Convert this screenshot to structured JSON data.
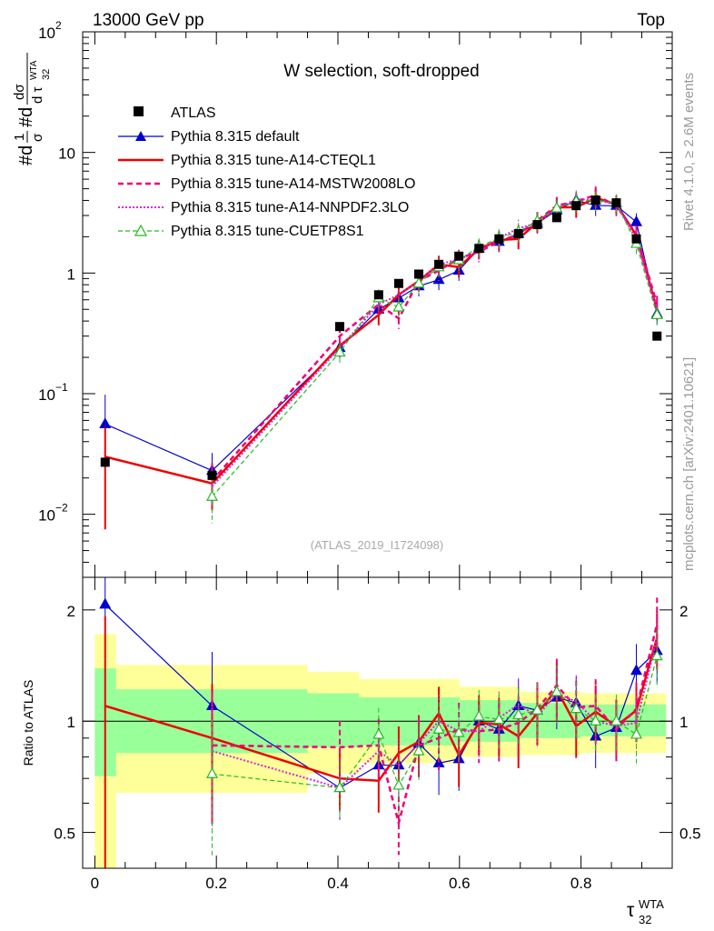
{
  "header": {
    "left": "13000 GeV pp",
    "right": "Top"
  },
  "side_labels": {
    "rivet": "Rivet 4.1.0, ≥ 2.6M events",
    "mcplots": "mcplots.cern.ch [arXiv:2401.10621]"
  },
  "colors": {
    "atlas": "#000000",
    "pythia_default": "#0000cc",
    "cteql1": "#ee0000",
    "mstw": "#ee0077",
    "nnpdf": "#dd22dd",
    "cuetp": "#22bb22",
    "band_inner": "#99ff99",
    "band_outer": "#ffff99"
  },
  "chart_data": [
    {
      "type": "line",
      "scale": "log",
      "title": "W selection, soft-dropped",
      "watermark": "(ATLAS_2019_I1724098)",
      "ylabel": "#d 1/σ #d dσ/d τ 32 WTA",
      "ylabel_parts": {
        "hash1": "#d",
        "one": "1",
        "sigma": "σ",
        "hash2": "#d",
        "dsigma": "dσ",
        "dtau": "d τ",
        "sub": "32",
        "sup": "WTA"
      },
      "xlim": [
        -0.02,
        0.95
      ],
      "ylim": [
        0.003,
        100
      ],
      "y_ticks": [
        {
          "value": 0.01,
          "base": "10",
          "exp": "−2"
        },
        {
          "value": 0.1,
          "base": "10",
          "exp": "−1"
        },
        {
          "value": 1,
          "label": "1"
        },
        {
          "value": 10,
          "label": "10"
        },
        {
          "value": 100,
          "base": "10",
          "exp": "2"
        }
      ],
      "legend": [
        "ATLAS",
        "Pythia 8.315 default",
        "Pythia 8.315 tune-A14-CTEQL1",
        "Pythia 8.315 tune-A14-MSTW2008LO",
        "Pythia 8.315 tune-A14-NNPDF2.3LO",
        "Pythia 8.315 tune-CUETP8S1"
      ],
      "x": [
        0.017,
        0.193,
        0.403,
        0.467,
        0.5,
        0.533,
        0.566,
        0.599,
        0.632,
        0.665,
        0.697,
        0.728,
        0.76,
        0.792,
        0.824,
        0.858,
        0.891,
        0.925
      ],
      "atlas": [
        0.027,
        0.021,
        0.36,
        0.66,
        0.82,
        0.98,
        1.18,
        1.38,
        1.6,
        1.92,
        2.12,
        2.52,
        2.88,
        3.62,
        4.02,
        3.82,
        1.92,
        0.3
      ],
      "series": [
        {
          "name": "Pythia 8.315 default",
          "key": "pythia_default",
          "x": [
            0.017,
            0.193,
            0.403,
            0.467,
            0.5,
            0.533,
            0.566,
            0.599,
            0.632,
            0.665,
            0.697,
            0.728,
            0.76,
            0.792,
            0.824,
            0.858,
            0.891,
            0.925
          ],
          "values": [
            0.056,
            0.023,
            0.24,
            0.5,
            0.62,
            0.78,
            0.88,
            1.05,
            1.6,
            1.82,
            2.12,
            2.58,
            3.32,
            4.0,
            3.62,
            3.62,
            2.65,
            0.46
          ]
        },
        {
          "name": "Pythia 8.315 tune-A14-CTEQL1",
          "key": "cteql1",
          "x": [
            0.017,
            0.193,
            0.403,
            0.467,
            0.5,
            0.533,
            0.566,
            0.599,
            0.632,
            0.665,
            0.697,
            0.728,
            0.76,
            0.792,
            0.824,
            0.858,
            0.891,
            0.925
          ],
          "values": [
            0.03,
            0.018,
            0.25,
            0.45,
            0.66,
            0.86,
            1.18,
            1.12,
            1.58,
            1.88,
            1.92,
            2.62,
            3.52,
            3.5,
            4.2,
            3.72,
            2.05,
            0.5
          ]
        },
        {
          "name": "Pythia 8.315 tune-A14-MSTW2008LO",
          "key": "mstw",
          "x": [
            0.193,
            0.403,
            0.467,
            0.5,
            0.533,
            0.566,
            0.599,
            0.632,
            0.665,
            0.697,
            0.728,
            0.76,
            0.792,
            0.824,
            0.858,
            0.891,
            0.925
          ],
          "values": [
            0.019,
            0.3,
            0.55,
            0.42,
            0.86,
            1.05,
            1.32,
            1.5,
            1.82,
            2.1,
            2.72,
            3.62,
            3.92,
            4.42,
            3.62,
            2.1,
            0.55
          ]
        },
        {
          "name": "Pythia 8.315 tune-A14-NNPDF2.3LO",
          "key": "nnpdf",
          "x": [
            0.193,
            0.403,
            0.467,
            0.5,
            0.533,
            0.566,
            0.599,
            0.632,
            0.665,
            0.697,
            0.728,
            0.76,
            0.792,
            0.824,
            0.858,
            0.891,
            0.925
          ],
          "values": [
            0.017,
            0.24,
            0.55,
            0.66,
            0.85,
            1.18,
            1.3,
            1.5,
            1.95,
            2.35,
            2.6,
            3.42,
            4.1,
            4.02,
            3.72,
            1.9,
            0.5
          ]
        },
        {
          "name": "Pythia 8.315 tune-CUETP8S1",
          "key": "cuetp",
          "x": [
            0.193,
            0.403,
            0.467,
            0.5,
            0.533,
            0.566,
            0.599,
            0.632,
            0.665,
            0.697,
            0.728,
            0.76,
            0.792,
            0.824,
            0.858,
            0.891,
            0.925
          ],
          "values": [
            0.014,
            0.22,
            0.62,
            0.52,
            0.82,
            1.12,
            1.28,
            1.65,
            1.95,
            2.2,
            2.7,
            3.45,
            3.92,
            4.02,
            3.82,
            1.75,
            0.45
          ]
        }
      ]
    },
    {
      "type": "line",
      "scale": "log",
      "ylabel": "Ratio to ATLAS",
      "xlabel": "τ 32 WTA",
      "xlabel_parts": {
        "tau": "τ",
        "sub": "32",
        "sup": "WTA"
      },
      "xlim": [
        -0.02,
        0.95
      ],
      "ylim": [
        0.4,
        2.45
      ],
      "x_ticks": [
        "0",
        "0.2",
        "0.4",
        "0.6",
        "0.8"
      ],
      "x_tick_values": [
        0,
        0.2,
        0.4,
        0.6,
        0.8
      ],
      "y_ticks": [
        "0.5",
        "1",
        "2"
      ],
      "y_tick_values": [
        0.5,
        1,
        2
      ],
      "bands": {
        "edges": [
          0.0,
          0.035,
          0.35,
          0.435,
          0.6,
          0.7,
          0.8,
          0.94
        ],
        "inner_lo": [
          0.71,
          0.82,
          0.85,
          0.86,
          0.88,
          0.9,
          0.91
        ],
        "inner_hi": [
          1.39,
          1.22,
          1.19,
          1.16,
          1.14,
          1.12,
          1.11
        ],
        "outer_lo": [
          0.38,
          0.64,
          0.72,
          0.77,
          0.8,
          0.81,
          0.82
        ],
        "outer_hi": [
          1.72,
          1.42,
          1.36,
          1.3,
          1.24,
          1.2,
          1.19
        ]
      },
      "series": [
        {
          "name": "Pythia 8.315 default",
          "key": "pythia_default",
          "x": [
            0.017,
            0.193,
            0.403,
            0.467,
            0.5,
            0.533,
            0.566,
            0.599,
            0.632,
            0.665,
            0.697,
            0.728,
            0.76,
            0.792,
            0.824,
            0.858,
            0.891,
            0.925
          ],
          "values": [
            2.07,
            1.1,
            0.66,
            0.76,
            0.76,
            0.87,
            0.77,
            0.79,
            1.0,
            0.95,
            1.1,
            1.07,
            1.16,
            1.12,
            0.91,
            0.96,
            1.37,
            1.55
          ]
        },
        {
          "name": "Pythia 8.315 tune-A14-CTEQL1",
          "key": "cteql1",
          "x": [
            0.017,
            0.193,
            0.403,
            0.467,
            0.5,
            0.533,
            0.566,
            0.599,
            0.632,
            0.665,
            0.697,
            0.728,
            0.76,
            0.792,
            0.824,
            0.858,
            0.891,
            0.925
          ],
          "values": [
            1.1,
            0.9,
            0.7,
            0.69,
            0.82,
            0.88,
            1.05,
            0.81,
            0.99,
            0.98,
            0.91,
            1.05,
            1.22,
            0.97,
            1.06,
            0.97,
            1.07,
            1.68
          ]
        },
        {
          "name": "Pythia 8.315 tune-A14-MSTW2008LO",
          "key": "mstw",
          "x": [
            0.193,
            0.403,
            0.467,
            0.5,
            0.533,
            0.566,
            0.599,
            0.632,
            0.665,
            0.697,
            0.728,
            0.76,
            0.792,
            0.824,
            0.858,
            0.891,
            0.925
          ],
          "values": [
            0.86,
            0.85,
            0.86,
            0.53,
            0.86,
            0.9,
            0.95,
            0.94,
            0.95,
            0.99,
            1.08,
            1.25,
            1.09,
            1.1,
            0.95,
            1.08,
            1.83
          ]
        },
        {
          "name": "Pythia 8.315 tune-A14-NNPDF2.3LO",
          "key": "nnpdf",
          "x": [
            0.193,
            0.403,
            0.467,
            0.5,
            0.533,
            0.566,
            0.599,
            0.632,
            0.665,
            0.697,
            0.728,
            0.76,
            0.792,
            0.824,
            0.858,
            0.891,
            0.925
          ],
          "values": [
            0.83,
            0.66,
            0.83,
            0.76,
            0.87,
            1.0,
            0.94,
            0.94,
            1.02,
            1.11,
            1.03,
            1.19,
            1.13,
            1.0,
            0.97,
            0.99,
            1.67
          ]
        },
        {
          "name": "Pythia 8.315 tune-CUETP8S1",
          "key": "cuetp",
          "x": [
            0.193,
            0.403,
            0.467,
            0.5,
            0.533,
            0.566,
            0.599,
            0.632,
            0.665,
            0.697,
            0.728,
            0.76,
            0.792,
            0.824,
            0.858,
            0.891,
            0.925
          ],
          "values": [
            0.72,
            0.66,
            0.92,
            0.67,
            0.83,
            0.95,
            0.93,
            1.03,
            1.01,
            1.04,
            1.07,
            1.2,
            1.08,
            1.0,
            1.0,
            0.92,
            1.5
          ]
        }
      ]
    }
  ]
}
